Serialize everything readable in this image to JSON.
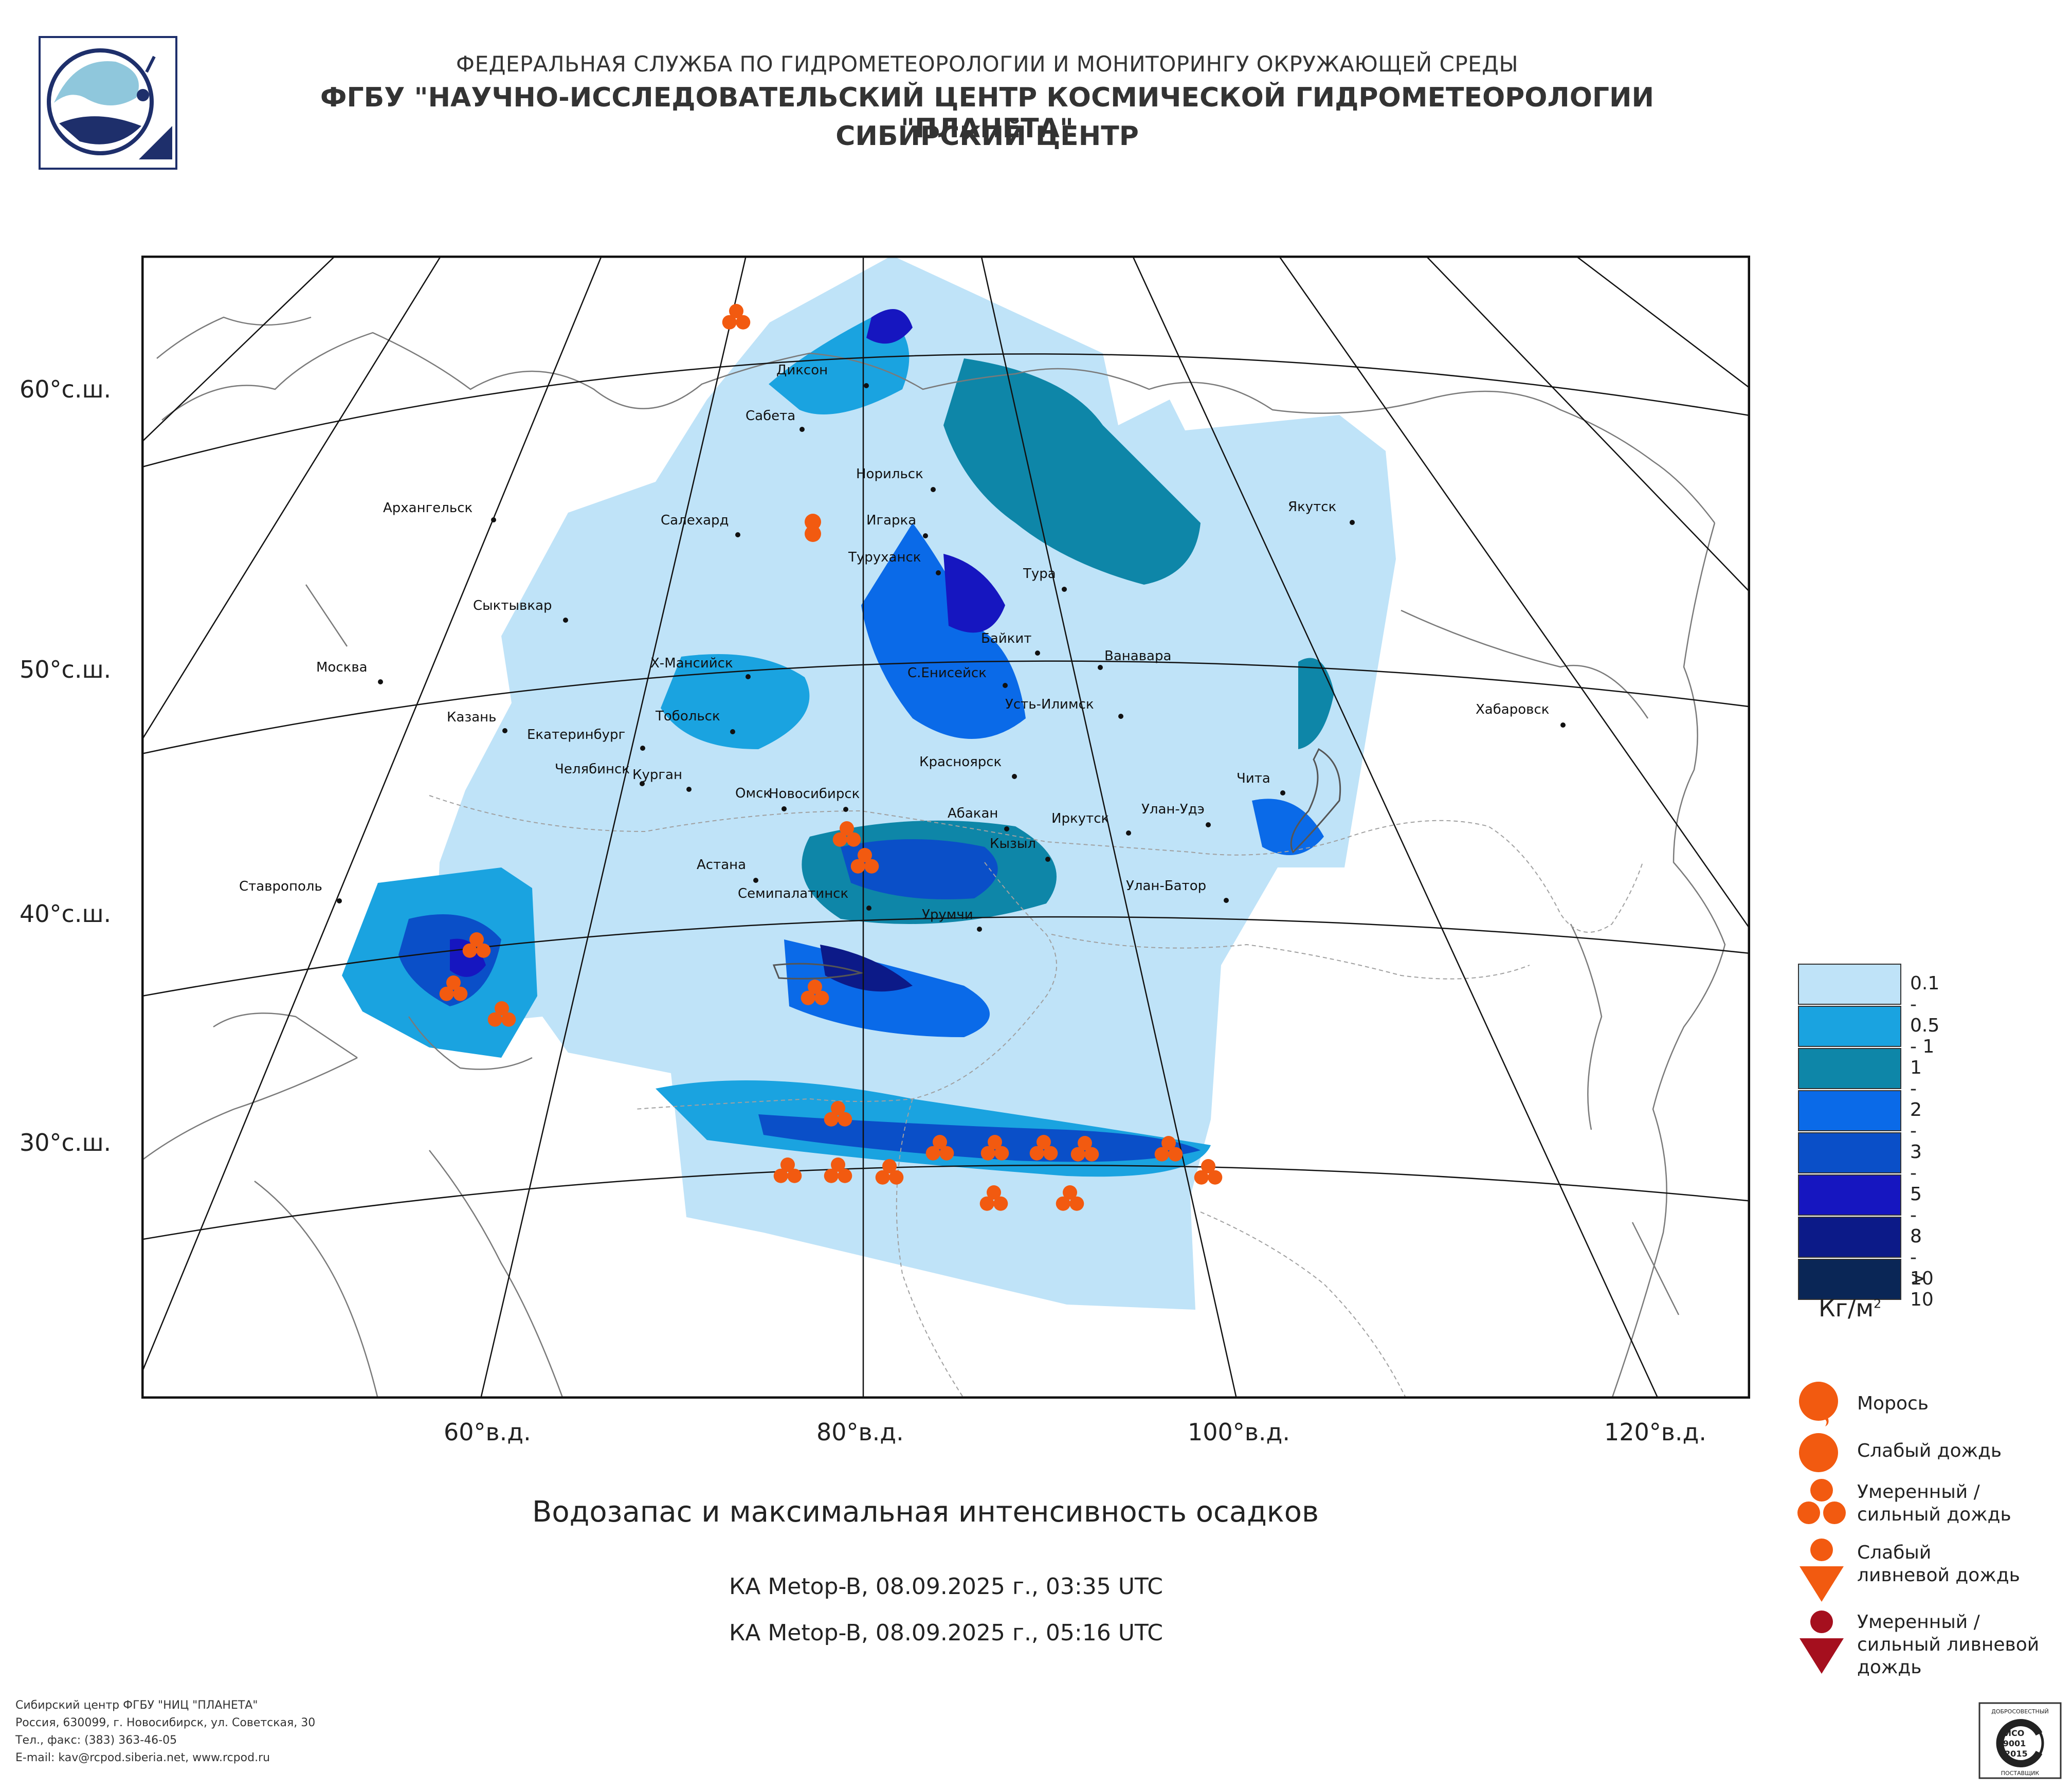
{
  "header": {
    "line1": "ФЕДЕРАЛЬНАЯ СЛУЖБА ПО ГИДРОМЕТЕОРОЛОГИИ И МОНИТОРИНГУ ОКРУЖАЮЩЕЙ СРЕДЫ",
    "line2": "ФГБУ \"НАУЧНО-ИССЛЕДОВАТЕЛЬСКИЙ ЦЕНТР КОСМИЧЕСКОЙ ГИДРОМЕТЕОРОЛОГИИ \"ПЛАНЕТА\"",
    "line3": "СИБИРСКИЙ ЦЕНТР"
  },
  "map": {
    "lat_labels": [
      "60°с.ш.",
      "50°с.ш.",
      "40°с.ш.",
      "30°с.ш."
    ],
    "lon_labels": [
      "60°в.д.",
      "80°в.д.",
      "100°в.д.",
      "120°в.д."
    ],
    "cities": [
      "Диксон",
      "Сабета",
      "Норильск",
      "Архангельск",
      "Салехард",
      "Игарка",
      "Туруханск",
      "Якутск",
      "Тура",
      "Сыктывкар",
      "Байкит",
      "Ванавара",
      "Москва",
      "Х-Мансийск",
      "С.Енисейск",
      "Усть-Илимск",
      "Казань",
      "Тобольск",
      "Хабаровск",
      "Екатеринбург",
      "Красноярск",
      "Челябинск",
      "Курган",
      "Чита",
      "Омск",
      "Новосибирск",
      "Абакан",
      "Улан-Удэ",
      "Иркутск",
      "Кызыл",
      "Астана",
      "Ставрополь",
      "Семипалатинск",
      "Улан-Батор",
      "Урумчи"
    ]
  },
  "title": "Водозапас и максимальная интенсивность осадков",
  "passes": [
    "КА Metop-B, 08.09.2025 г., 03:35 UTC",
    "КА Metop-B, 08.09.2025 г., 05:16 UTC"
  ],
  "legend": {
    "classes": [
      {
        "label": "0.1 - 0.5",
        "color": "#bfe3f8"
      },
      {
        "label": "0.5 - 1",
        "color": "#1aa3e0"
      },
      {
        "label": "1 - 2",
        "color": "#0e86a8"
      },
      {
        "label": "2 - 3",
        "color": "#0a6ae8"
      },
      {
        "label": "3 - 5",
        "color": "#0a4fc8"
      },
      {
        "label": "5 - 8",
        "color": "#1616c0"
      },
      {
        "label": "8 - 10",
        "color": "#0c1a88"
      },
      {
        "label": "> 10",
        "color": "#0a2656"
      }
    ],
    "unit": "Кг/м",
    "unit_sup": "2",
    "symbols": [
      {
        "label": "Морось",
        "icon": "drizzle-icon"
      },
      {
        "label": "Слабый дождь",
        "icon": "light-rain-icon"
      },
      {
        "label": "Умеренный / сильный дождь",
        "icon": "moderate-rain-icon"
      },
      {
        "label": "Слабый ливневой дождь",
        "icon": "light-shower-icon"
      },
      {
        "label": "Умеренный / сильный ливневой дождь",
        "icon": "heavy-shower-icon"
      }
    ]
  },
  "footer": [
    "Сибирский центр ФГБУ \"НИЦ \"ПЛАНЕТА\"",
    "Россия, 630099, г. Новосибирск, ул. Советская, 30",
    "Тел., факс: (383) 363-46-05",
    "E-mail: kav@rcpod.siberia.net, www.rcpod.ru"
  ],
  "iso_badge": [
    "ДОБРОСОВЕСТНЫЙ",
    "ИСО",
    "9001",
    "-2015",
    "ПОСТАВЩИК"
  ],
  "colors": {
    "precip_symbol": "#f25a10",
    "heavy_shower": "#a50f1e",
    "frame": "#111111"
  }
}
